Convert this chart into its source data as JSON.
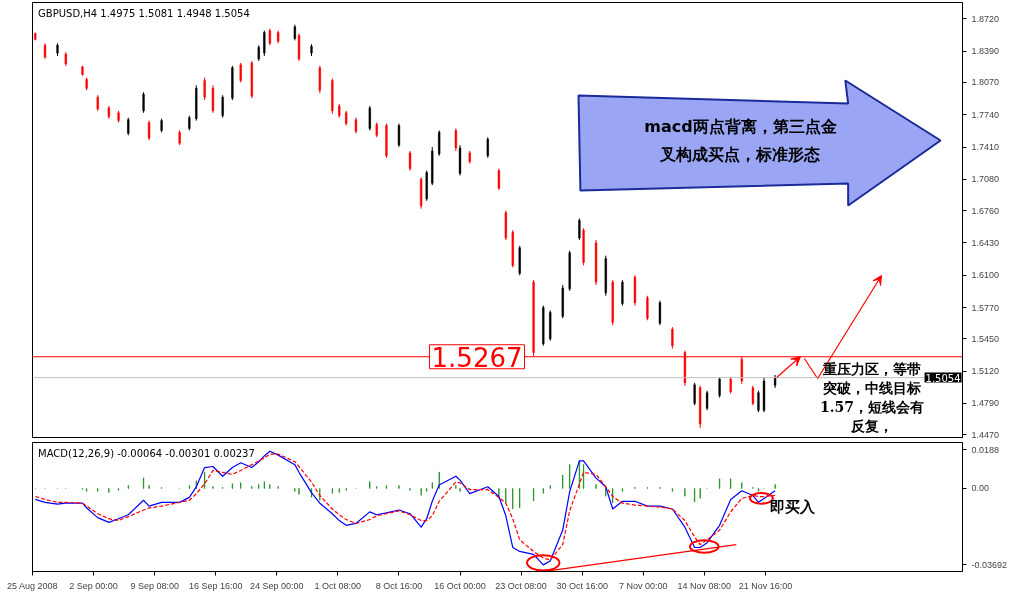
{
  "chart_data": [
    {
      "type": "candlestick",
      "title": "GBPUSD,H4  1.4975 1.5081 1.4948 1.5054",
      "x": [
        "2008-08-26T00:00",
        "2008-08-27T04:00",
        "2008-08-28T16:00",
        "2008-08-29T16:00",
        "2008-08-31T16:00",
        "2008-09-01T04:00",
        "2008-09-02T12:00",
        "2008-09-03T20:00",
        "2008-09-05T00:00",
        "2008-09-06T04:00",
        "2008-09-08T00:00",
        "2008-09-08T16:00",
        "2008-09-10T04:00",
        "2008-09-12T08:00",
        "2008-09-13T12:00",
        "2008-09-14T08:00",
        "2008-09-15T08:00",
        "2008-09-16T08:00",
        "2008-09-17T12:00",
        "2008-09-18T16:00",
        "2008-09-19T16:00",
        "2008-09-21T00:00",
        "2008-09-21T20:00",
        "2008-09-22T12:00",
        "2008-09-23T04:00",
        "2008-09-24T04:00",
        "2008-09-26T04:00",
        "2008-09-26T16:00",
        "2008-09-28T04:00",
        "2008-09-29T04:00",
        "2008-09-30T16:00",
        "2008-10-01T12:00",
        "2008-10-02T08:00",
        "2008-10-03T12:00",
        "2008-10-05T04:00",
        "2008-10-06T00:00",
        "2008-10-07T04:00",
        "2008-10-08T16:00",
        "2008-10-10T00:00",
        "2008-10-11T08:00",
        "2008-10-12T00:00",
        "2008-10-12T16:00",
        "2008-10-13T12:00",
        "2008-10-15T12:00",
        "2008-10-16T00:00",
        "2008-10-17T04:00",
        "2008-10-19T08:00",
        "2008-10-20T16:00",
        "2008-10-21T12:00",
        "2008-10-22T08:00",
        "2008-10-23T04:00",
        "2008-10-24T20:00",
        "2008-10-26T00:00",
        "2008-10-26T20:00",
        "2008-10-28T08:00",
        "2008-10-29T04:00",
        "2008-10-30T08:00",
        "2008-10-30T20:00",
        "2008-11-01T08:00",
        "2008-11-02T12:00",
        "2008-11-03T08:00",
        "2008-11-04T12:00",
        "2008-11-06T00:00",
        "2008-11-07T12:00",
        "2008-11-09T00:00",
        "2008-11-10T12:00",
        "2008-11-12T00:00",
        "2008-11-13T04:00",
        "2008-11-13T20:00",
        "2008-11-14T16:00",
        "2008-11-16T04:00",
        "2008-11-17T12:00",
        "2008-11-18T20:00",
        "2008-11-20T04:00",
        "2008-11-20T20:00",
        "2008-11-21T12:00",
        "2008-11-22T20:00"
      ],
      "ohlc": [
        [
          1.857,
          1.858,
          1.85,
          1.851
        ],
        [
          1.845,
          1.847,
          1.831,
          1.833
        ],
        [
          1.837,
          1.847,
          1.834,
          1.845
        ],
        [
          1.836,
          1.838,
          1.824,
          1.826
        ],
        [
          1.823,
          1.824,
          1.814,
          1.815
        ],
        [
          1.81,
          1.812,
          1.799,
          1.801
        ],
        [
          1.792,
          1.794,
          1.778,
          1.78
        ],
        [
          1.781,
          1.783,
          1.77,
          1.772
        ],
        [
          1.776,
          1.778,
          1.766,
          1.768
        ],
        [
          1.755,
          1.771,
          1.753,
          1.769
        ],
        [
          1.778,
          1.797,
          1.776,
          1.795
        ],
        [
          1.766,
          1.768,
          1.748,
          1.75
        ],
        [
          1.758,
          1.77,
          1.756,
          1.768
        ],
        [
          1.756,
          1.758,
          1.743,
          1.745
        ],
        [
          1.76,
          1.773,
          1.758,
          1.771
        ],
        [
          1.77,
          1.804,
          1.768,
          1.801
        ],
        [
          1.809,
          1.812,
          1.789,
          1.792
        ],
        [
          1.801,
          1.804,
          1.776,
          1.778
        ],
        [
          1.773,
          1.794,
          1.771,
          1.792
        ],
        [
          1.791,
          1.824,
          1.789,
          1.822
        ],
        [
          1.825,
          1.827,
          1.807,
          1.809
        ],
        [
          1.827,
          1.829,
          1.791,
          1.793
        ],
        [
          1.831,
          1.845,
          1.829,
          1.843
        ],
        [
          1.837,
          1.86,
          1.834,
          1.858
        ],
        [
          1.86,
          1.862,
          1.845,
          1.847
        ],
        [
          1.858,
          1.86,
          1.847,
          1.849
        ],
        [
          1.852,
          1.866,
          1.85,
          1.864
        ],
        [
          1.855,
          1.857,
          1.829,
          1.831
        ],
        [
          1.837,
          1.846,
          1.834,
          1.844
        ],
        [
          1.822,
          1.824,
          1.796,
          1.799
        ],
        [
          1.809,
          1.811,
          1.775,
          1.778
        ],
        [
          1.783,
          1.785,
          1.771,
          1.773
        ],
        [
          1.776,
          1.778,
          1.763,
          1.765
        ],
        [
          1.769,
          1.771,
          1.755,
          1.757
        ],
        [
          1.76,
          1.783,
          1.758,
          1.781
        ],
        [
          1.764,
          1.766,
          1.751,
          1.753
        ],
        [
          1.763,
          1.765,
          1.73,
          1.732
        ],
        [
          1.743,
          1.765,
          1.741,
          1.763
        ],
        [
          1.735,
          1.737,
          1.717,
          1.719
        ],
        [
          1.708,
          1.71,
          1.678,
          1.681
        ],
        [
          1.688,
          1.717,
          1.686,
          1.715
        ],
        [
          1.704,
          1.741,
          1.702,
          1.737
        ],
        [
          1.734,
          1.758,
          1.732,
          1.756
        ],
        [
          1.758,
          1.76,
          1.737,
          1.74
        ],
        [
          1.714,
          1.743,
          1.712,
          1.74
        ],
        [
          1.735,
          1.737,
          1.724,
          1.726
        ],
        [
          1.732,
          1.751,
          1.73,
          1.749
        ],
        [
          1.717,
          1.719,
          1.697,
          1.699
        ],
        [
          1.674,
          1.676,
          1.646,
          1.648
        ],
        [
          1.654,
          1.656,
          1.618,
          1.62
        ],
        [
          1.612,
          1.64,
          1.61,
          1.638
        ],
        [
          1.603,
          1.605,
          1.527,
          1.531
        ],
        [
          1.54,
          1.579,
          1.538,
          1.577
        ],
        [
          1.545,
          1.574,
          1.543,
          1.572
        ],
        [
          1.568,
          1.6,
          1.566,
          1.597
        ],
        [
          1.596,
          1.635,
          1.594,
          1.633
        ],
        [
          1.648,
          1.668,
          1.646,
          1.666
        ],
        [
          1.656,
          1.658,
          1.62,
          1.623
        ],
        [
          1.643,
          1.646,
          1.6,
          1.603
        ],
        [
          1.592,
          1.63,
          1.589,
          1.627
        ],
        [
          1.603,
          1.605,
          1.559,
          1.562
        ],
        [
          1.581,
          1.605,
          1.579,
          1.603
        ],
        [
          1.608,
          1.61,
          1.579,
          1.582
        ],
        [
          1.587,
          1.589,
          1.564,
          1.566
        ],
        [
          1.561,
          1.584,
          1.559,
          1.582
        ],
        [
          1.555,
          1.557,
          1.535,
          1.538
        ],
        [
          1.531,
          1.533,
          1.497,
          1.5
        ],
        [
          1.479,
          1.5,
          1.477,
          1.498
        ],
        [
          1.495,
          1.497,
          1.454,
          1.458
        ],
        [
          1.474,
          1.492,
          1.472,
          1.49
        ],
        [
          1.487,
          1.506,
          1.485,
          1.504
        ],
        [
          1.504,
          1.506,
          1.489,
          1.491
        ],
        [
          1.524,
          1.527,
          1.499,
          1.502
        ],
        [
          1.495,
          1.497,
          1.477,
          1.479
        ],
        [
          1.472,
          1.492,
          1.47,
          1.49
        ],
        [
          1.472,
          1.505,
          1.47,
          1.502
        ],
        [
          1.4975,
          1.5081,
          1.4948,
          1.5054
        ]
      ],
      "colors": [
        "#ff0000",
        "#ff0000",
        "#000000",
        "#ff0000",
        "#ff0000",
        "#ff0000",
        "#ff0000",
        "#ff0000",
        "#ff0000",
        "#000000",
        "#000000",
        "#ff0000",
        "#000000",
        "#ff0000",
        "#000000",
        "#000000",
        "#ff0000",
        "#ff0000",
        "#000000",
        "#000000",
        "#ff0000",
        "#ff0000",
        "#000000",
        "#000000",
        "#ff0000",
        "#ff0000",
        "#000000",
        "#ff0000",
        "#000000",
        "#ff0000",
        "#ff0000",
        "#ff0000",
        "#ff0000",
        "#ff0000",
        "#000000",
        "#ff0000",
        "#ff0000",
        "#000000",
        "#ff0000",
        "#ff0000",
        "#000000",
        "#000000",
        "#000000",
        "#ff0000",
        "#000000",
        "#ff0000",
        "#000000",
        "#ff0000",
        "#ff0000",
        "#ff0000",
        "#000000",
        "#ff0000",
        "#000000",
        "#000000",
        "#000000",
        "#000000",
        "#000000",
        "#ff0000",
        "#ff0000",
        "#000000",
        "#ff0000",
        "#000000",
        "#ff0000",
        "#ff0000",
        "#000000",
        "#ff0000",
        "#ff0000",
        "#000000",
        "#ff0000",
        "#000000",
        "#000000",
        "#ff0000",
        "#ff0000",
        "#ff0000",
        "#000000",
        "#000000",
        "#000000"
      ],
      "xlim": [
        "2008-08-25T16:00",
        "2008-12-15T08:00"
      ],
      "ylim": [
        1.4442,
        1.8887
      ],
      "yticks": [
        {
          "value": 1.872,
          "label": "1.8720"
        },
        {
          "value": 1.839,
          "label": "1.8390"
        },
        {
          "value": 1.807,
          "label": "1.8070"
        },
        {
          "value": 1.774,
          "label": "1.7740"
        },
        {
          "value": 1.741,
          "label": "1.7410"
        },
        {
          "value": 1.708,
          "label": "1.7080"
        },
        {
          "value": 1.676,
          "label": "1.6760"
        },
        {
          "value": 1.643,
          "label": "1.6430"
        },
        {
          "value": 1.61,
          "label": "1.6100"
        },
        {
          "value": 1.577,
          "label": "1.5770"
        },
        {
          "value": 1.545,
          "label": "1.5450"
        },
        {
          "value": 1.512,
          "label": "1.5120"
        },
        {
          "value": 1.479,
          "label": "1.4790"
        },
        {
          "value": 1.447,
          "label": "1.4470"
        }
      ],
      "tick_labels": "y",
      "ref_lines": [
        {
          "axis": "y",
          "value": 1.5267,
          "label": "1.5267",
          "color": "#ff0000"
        },
        {
          "axis": "y",
          "value": 1.5054,
          "label": "1.5054",
          "color": "#c0c0c0"
        }
      ],
      "annotations": [
        "macd两点背离，第三点金叉构成买点，标准形态",
        "重压力区，等带突破，中线目标1.57，短线会有反复，"
      ]
    },
    {
      "type": "bar",
      "title": "MACD(12,26,9) -0.00064 -0.00301 0.00237",
      "x": [
        "2008-08-26T00:00",
        "2008-08-27T04:00",
        "2008-08-28T16:00",
        "2008-08-29T16:00",
        "2008-08-31T16:00",
        "2008-09-01T04:00",
        "2008-09-02T12:00",
        "2008-09-03T20:00",
        "2008-09-05T00:00",
        "2008-09-06T04:00",
        "2008-09-08T00:00",
        "2008-09-08T16:00",
        "2008-09-10T04:00",
        "2008-09-12T08:00",
        "2008-09-13T12:00",
        "2008-09-14T08:00",
        "2008-09-15T08:00",
        "2008-09-16T08:00",
        "2008-09-17T12:00",
        "2008-09-18T16:00",
        "2008-09-19T16:00",
        "2008-09-21T00:00",
        "2008-09-21T20:00",
        "2008-09-22T12:00",
        "2008-09-23T04:00",
        "2008-09-24T04:00",
        "2008-09-26T04:00",
        "2008-09-26T16:00",
        "2008-09-28T04:00",
        "2008-09-29T04:00",
        "2008-09-30T16:00",
        "2008-10-01T12:00",
        "2008-10-02T08:00",
        "2008-10-03T12:00",
        "2008-10-05T04:00",
        "2008-10-06T00:00",
        "2008-10-07T04:00",
        "2008-10-08T16:00",
        "2008-10-10T00:00",
        "2008-10-11T08:00",
        "2008-10-12T00:00",
        "2008-10-12T16:00",
        "2008-10-13T12:00",
        "2008-10-15T12:00",
        "2008-10-16T00:00",
        "2008-10-17T04:00",
        "2008-10-19T08:00",
        "2008-10-20T16:00",
        "2008-10-21T12:00",
        "2008-10-22T08:00",
        "2008-10-23T04:00",
        "2008-10-24T20:00",
        "2008-10-26T00:00",
        "2008-10-26T20:00",
        "2008-10-28T08:00",
        "2008-10-29T04:00",
        "2008-10-30T08:00",
        "2008-10-30T20:00",
        "2008-11-01T08:00",
        "2008-11-02T12:00",
        "2008-11-03T08:00",
        "2008-11-04T12:00",
        "2008-11-06T00:00",
        "2008-11-07T12:00",
        "2008-11-09T00:00",
        "2008-11-10T12:00",
        "2008-11-12T00:00",
        "2008-11-13T04:00",
        "2008-11-13T20:00",
        "2008-11-14T16:00",
        "2008-11-16T04:00",
        "2008-11-17T12:00",
        "2008-11-18T20:00",
        "2008-11-20T04:00",
        "2008-11-20T20:00",
        "2008-11-21T12:00",
        "2008-11-22T20:00"
      ],
      "series": [
        {
          "type": "bar",
          "color": "#008000",
          "values": [
            0,
            0,
            0,
            0,
            -0.0005,
            -0.0014,
            -0.0014,
            -0.0019,
            -0.0009,
            0.0014,
            0.0051,
            0.0014,
            0.0005,
            0,
            0.0014,
            0.0037,
            0.0079,
            0.0009,
            0.0005,
            0.0023,
            0.0028,
            0.0009,
            0.0019,
            0.0033,
            0.0019,
            0.0009,
            -0.0014,
            -0.0028,
            -0.0042,
            -0.0056,
            -0.0023,
            -0.0019,
            -0.0009,
            0,
            0.0033,
            0.0009,
            0.0014,
            0.0014,
            -0.0009,
            -0.0033,
            -0.0014,
            0.0028,
            0.0079,
            0.0014,
            -0.0014,
            -0.0005,
            0,
            -0.0047,
            -0.007,
            -0.0098,
            -0.0093,
            -0.006,
            -0.0023,
            0.0014,
            0.0065,
            0.0116,
            0.0135,
            0.0116,
            0.0019,
            -0.0037,
            -0.007,
            -0.0014,
            0.0005,
            0.0005,
            0.0005,
            -0.0014,
            -0.0037,
            -0.0065,
            -0.0047,
            0,
            0.0047,
            0.0047,
            0.0028,
            0.0005,
            -0.0014,
            0,
            0.0019
          ]
        },
        {
          "type": "line",
          "color": "#0000ff",
          "values": [
            -0.0053,
            -0.0067,
            -0.0076,
            -0.0071,
            -0.0071,
            -0.0094,
            -0.0141,
            -0.0164,
            -0.0146,
            -0.0127,
            -0.0057,
            -0.0085,
            -0.0067,
            -0.0067,
            -0.0043,
            0.0008,
            0.0101,
            0.0106,
            0.0059,
            0.0101,
            0.0124,
            0.0101,
            0.0129,
            0.0157,
            0.018,
            0.0161,
            0.0115,
            0.0078,
            -0.002,
            -0.0071,
            -0.0122,
            -0.0155,
            -0.0178,
            -0.0169,
            -0.0113,
            -0.0127,
            -0.0118,
            -0.0104,
            -0.0122,
            -0.0187,
            -0.0146,
            -0.0062,
            0.0017,
            0.0059,
            0.004,
            -0.0025,
            0.0008,
            -0.0039,
            -0.0132,
            -0.0285,
            -0.0304,
            -0.0318,
            -0.0369,
            -0.035,
            -0.0201,
            -0.0015,
            0.0133,
            0.0133,
            0.005,
            0.0008,
            -0.0099,
            -0.0062,
            -0.0062,
            -0.0085,
            -0.0085,
            -0.0099,
            -0.0187,
            -0.0285,
            -0.0285,
            -0.0262,
            -0.0178,
            -0.0053,
            -0.0011,
            -0.0034,
            -0.0067,
            -0.0048,
            -0.0011
          ]
        },
        {
          "type": "line",
          "color": "#ff0000",
          "line_style": "dashed",
          "values": [
            -0.0039,
            -0.0053,
            -0.0067,
            -0.0067,
            -0.0071,
            -0.0085,
            -0.0122,
            -0.0146,
            -0.0155,
            -0.0136,
            -0.0104,
            -0.0094,
            -0.0085,
            -0.0067,
            -0.0057,
            -0.0025,
            0.0022,
            0.0087,
            0.0078,
            0.0068,
            0.0087,
            0.0115,
            0.0133,
            0.0147,
            0.0166,
            0.0166,
            0.0129,
            0.0106,
            0.0031,
            -0.0034,
            -0.0099,
            -0.0127,
            -0.015,
            -0.0169,
            -0.015,
            -0.0132,
            -0.0122,
            -0.0108,
            -0.0127,
            -0.0155,
            -0.0155,
            -0.0132,
            -0.0062,
            0.0031,
            0.0027,
            -0.0006,
            -0.0006,
            -0.0043,
            -0.0071,
            -0.0146,
            -0.0248,
            -0.0304,
            -0.0336,
            -0.0345,
            -0.0271,
            -0.0108,
            0.0022,
            0.0078,
            0.0068,
            0.0008,
            -0.0039,
            -0.0071,
            -0.008,
            -0.0085,
            -0.009,
            -0.0099,
            -0.0155,
            -0.0234,
            -0.0271,
            -0.0248,
            -0.0201,
            -0.0113,
            -0.0048,
            -0.0034,
            -0.0039,
            -0.0039,
            -0.0034
          ]
        },
        {
          "type": "line",
          "color": "#ff0000",
          "x": [
            "2008-10-26T20:00",
            "2008-11-18T04:00"
          ],
          "values": [
            -0.0397,
            -0.0271
          ]
        }
      ],
      "xlim": [
        "2008-08-25T16:00",
        "2008-12-15T08:00"
      ],
      "xticks": [
        {
          "value": "2008-08-25T16:00",
          "label": "25 Aug 2008"
        },
        {
          "value": "2008-09-02T00:00",
          "label": "2 Sep 00:00"
        },
        {
          "value": "2008-09-09T08:00",
          "label": "9 Sep 08:00"
        },
        {
          "value": "2008-09-16T16:00",
          "label": "16 Sep 16:00"
        },
        {
          "value": "2008-09-24T00:00",
          "label": "24 Sep 00:00"
        },
        {
          "value": "2008-10-01T08:00",
          "label": "1 Oct 08:00"
        },
        {
          "value": "2008-10-08T16:00",
          "label": "8 Oct 16:00"
        },
        {
          "value": "2008-10-16T00:00",
          "label": "16 Oct 00:00"
        },
        {
          "value": "2008-10-23T08:00",
          "label": "23 Oct 08:00"
        },
        {
          "value": "2008-10-30T16:00",
          "label": "30 Oct 16:00"
        },
        {
          "value": "2008-11-07T00:00",
          "label": "7 Nov 00:00"
        },
        {
          "value": "2008-11-14T08:00",
          "label": "14 Nov 08:00"
        },
        {
          "value": "2008-11-21T16:00",
          "label": "21 Nov 16:00"
        }
      ],
      "ylim": [
        -0.0401,
        0.0222
      ],
      "yticks": [
        {
          "value": 0.0188,
          "label": "0.0188"
        },
        {
          "value": 0,
          "label": "0.00"
        },
        {
          "value": -0.03692,
          "label": "-0.03692"
        }
      ],
      "annotations": [
        "即买入"
      ]
    }
  ]
}
